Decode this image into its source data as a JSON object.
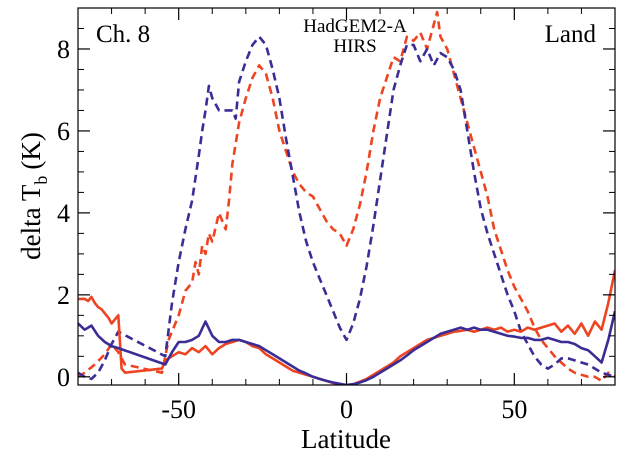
{
  "chart_data": {
    "type": "line",
    "title": "",
    "xlabel": "Latitude",
    "ylabel_main": "delta T",
    "ylabel_sub": "b",
    "ylabel_unit": "(K)",
    "xlim": [
      -80,
      80
    ],
    "ylim": [
      -0.2,
      9.0
    ],
    "xticks": [
      -50,
      0,
      50
    ],
    "yticks": [
      0,
      2,
      4,
      6,
      8
    ],
    "grid": false,
    "legend_placement": "top-center",
    "annotations": {
      "left": "Ch. 8",
      "right": "Land"
    },
    "series": [
      {
        "name": "HadGEM2-A",
        "color": "#ee4422",
        "style": "dashed",
        "x": [
          -80,
          -78,
          -75,
          -72,
          -70,
          -68,
          -66,
          -55,
          -53,
          -50,
          -48,
          -46,
          -45,
          -44,
          -43,
          -42,
          -41,
          -40,
          -38,
          -36,
          -35,
          -34,
          -32,
          -30,
          -28,
          -26,
          -24,
          -22,
          -20,
          -18,
          -16,
          -14,
          -12,
          -10,
          -8,
          -6,
          -4,
          -2,
          0,
          2,
          4,
          6,
          8,
          10,
          12,
          14,
          16,
          17,
          18,
          20,
          22,
          24,
          26,
          27,
          28,
          30,
          32,
          34,
          36,
          38,
          40,
          42,
          44,
          46,
          48,
          50,
          52,
          54,
          56,
          58,
          60,
          62,
          64,
          66,
          68,
          70,
          72,
          74,
          76,
          78,
          80
        ],
        "y": [
          0.0,
          0.1,
          0.3,
          0.55,
          0.8,
          0.6,
          0.3,
          0.1,
          0.9,
          1.5,
          2.1,
          2.3,
          2.8,
          2.5,
          3.2,
          3.0,
          3.5,
          3.3,
          4.0,
          3.6,
          4.3,
          5.2,
          6.2,
          6.8,
          7.3,
          7.6,
          7.4,
          6.8,
          6.0,
          5.5,
          5.0,
          4.7,
          4.5,
          4.4,
          4.1,
          3.8,
          3.6,
          3.5,
          3.2,
          3.6,
          4.2,
          5.0,
          6.0,
          6.8,
          7.3,
          7.8,
          7.7,
          8.0,
          8.3,
          8.2,
          8.4,
          8.0,
          8.6,
          8.9,
          8.3,
          8.0,
          7.4,
          6.8,
          6.2,
          5.6,
          5.0,
          4.4,
          3.6,
          3.1,
          2.6,
          2.2,
          1.9,
          1.6,
          1.2,
          0.9,
          0.7,
          0.5,
          0.35,
          0.2,
          0.1,
          0.05,
          0.0,
          0.0,
          -0.1,
          0.1,
          0.0
        ]
      },
      {
        "name": "HIRS",
        "color": "#3a2e96",
        "style": "dashed",
        "x": [
          -80,
          -78,
          -76,
          -74,
          -72,
          -70,
          -68,
          -54,
          -52,
          -50,
          -48,
          -46,
          -44,
          -43,
          -42,
          -41,
          -40,
          -38,
          -36,
          -34,
          -33,
          -32,
          -30,
          -28,
          -26,
          -24,
          -22,
          -20,
          -18,
          -16,
          -14,
          -12,
          -10,
          -8,
          -6,
          -4,
          -2,
          0,
          2,
          4,
          6,
          8,
          10,
          12,
          14,
          16,
          18,
          20,
          22,
          24,
          26,
          28,
          30,
          32,
          34,
          36,
          38,
          40,
          42,
          44,
          46,
          48,
          50,
          52,
          54,
          56,
          58,
          60,
          62,
          64,
          66,
          68,
          70,
          72,
          74,
          76,
          78,
          80
        ],
        "y": [
          0.1,
          0.0,
          -0.05,
          0.1,
          0.4,
          0.8,
          1.1,
          0.5,
          1.8,
          2.8,
          3.6,
          4.3,
          5.4,
          6.0,
          6.5,
          7.1,
          6.8,
          6.5,
          6.5,
          6.5,
          6.3,
          7.2,
          7.7,
          8.1,
          8.3,
          8.1,
          7.5,
          6.8,
          5.8,
          4.9,
          4.0,
          3.3,
          2.8,
          2.4,
          2.0,
          1.6,
          1.2,
          0.9,
          1.3,
          1.9,
          2.7,
          3.7,
          4.8,
          5.9,
          7.0,
          7.6,
          8.1,
          8.1,
          7.7,
          8.0,
          7.6,
          7.9,
          7.8,
          7.5,
          7.0,
          6.0,
          5.0,
          4.1,
          3.5,
          3.0,
          2.5,
          2.0,
          1.6,
          1.1,
          0.8,
          0.5,
          0.3,
          0.2,
          0.3,
          0.45,
          0.45,
          0.4,
          0.35,
          0.3,
          0.2,
          0.1,
          0.05,
          0.0
        ]
      },
      {
        "name": "",
        "color": "#ee4422",
        "style": "solid",
        "x": [
          -80,
          -78,
          -77,
          -76,
          -75,
          -74,
          -73,
          -72,
          -71,
          -70,
          -69,
          -68,
          -67,
          -66,
          -55,
          -54,
          -52,
          -50,
          -48,
          -46,
          -44,
          -42,
          -40,
          -38,
          -36,
          -34,
          -32,
          -30,
          -28,
          -26,
          -24,
          -22,
          -20,
          -18,
          -16,
          -14,
          -12,
          -10,
          -8,
          -6,
          -4,
          -2,
          0,
          2,
          4,
          6,
          8,
          10,
          12,
          14,
          16,
          18,
          20,
          22,
          24,
          26,
          28,
          30,
          32,
          34,
          36,
          38,
          40,
          42,
          44,
          46,
          48,
          50,
          52,
          54,
          56,
          58,
          60,
          62,
          64,
          66,
          68,
          70,
          72,
          74,
          76,
          78,
          80
        ],
        "y": [
          1.9,
          1.9,
          1.85,
          1.95,
          1.8,
          1.7,
          1.65,
          1.55,
          1.45,
          1.3,
          1.4,
          1.5,
          0.2,
          0.1,
          0.2,
          0.4,
          0.5,
          0.6,
          0.55,
          0.7,
          0.6,
          0.75,
          0.55,
          0.7,
          0.8,
          0.85,
          0.9,
          0.85,
          0.75,
          0.7,
          0.55,
          0.45,
          0.35,
          0.25,
          0.15,
          0.1,
          0.05,
          0.0,
          -0.05,
          -0.1,
          -0.15,
          -0.18,
          -0.2,
          -0.18,
          -0.12,
          -0.05,
          0.05,
          0.15,
          0.25,
          0.35,
          0.5,
          0.6,
          0.7,
          0.8,
          0.9,
          0.95,
          1.0,
          1.05,
          1.1,
          1.12,
          1.15,
          1.1,
          1.15,
          1.2,
          1.15,
          1.2,
          1.1,
          1.15,
          1.1,
          1.2,
          1.15,
          1.2,
          1.25,
          1.3,
          1.1,
          1.25,
          1.05,
          1.3,
          1.0,
          1.35,
          1.15,
          1.8,
          2.6
        ]
      },
      {
        "name": "",
        "color": "#3a2e96",
        "style": "solid",
        "x": [
          -80,
          -78,
          -76,
          -74,
          -72,
          -70,
          -68,
          -54,
          -52,
          -50,
          -48,
          -46,
          -44,
          -42,
          -40,
          -38,
          -36,
          -34,
          -32,
          -30,
          -28,
          -26,
          -24,
          -22,
          -20,
          -18,
          -16,
          -14,
          -12,
          -10,
          -8,
          -6,
          -4,
          -2,
          0,
          2,
          4,
          6,
          8,
          10,
          12,
          14,
          16,
          18,
          20,
          22,
          24,
          26,
          28,
          30,
          32,
          34,
          36,
          38,
          40,
          42,
          44,
          46,
          48,
          50,
          52,
          54,
          56,
          58,
          60,
          62,
          64,
          66,
          68,
          70,
          72,
          74,
          76,
          78,
          80
        ],
        "y": [
          1.3,
          1.15,
          1.25,
          1.0,
          0.85,
          0.75,
          0.7,
          0.3,
          0.6,
          0.85,
          0.85,
          0.9,
          1.0,
          1.35,
          1.0,
          0.85,
          0.85,
          0.9,
          0.9,
          0.85,
          0.8,
          0.75,
          0.65,
          0.55,
          0.45,
          0.35,
          0.25,
          0.15,
          0.08,
          0.0,
          -0.05,
          -0.1,
          -0.14,
          -0.17,
          -0.2,
          -0.18,
          -0.14,
          -0.08,
          0.0,
          0.1,
          0.2,
          0.3,
          0.4,
          0.52,
          0.65,
          0.75,
          0.85,
          0.95,
          1.05,
          1.1,
          1.15,
          1.2,
          1.15,
          1.2,
          1.15,
          1.15,
          1.1,
          1.05,
          1.0,
          0.98,
          0.95,
          0.95,
          0.9,
          0.9,
          0.95,
          0.9,
          0.85,
          0.85,
          0.8,
          0.7,
          0.65,
          0.5,
          0.35,
          0.9,
          1.6
        ]
      }
    ]
  }
}
